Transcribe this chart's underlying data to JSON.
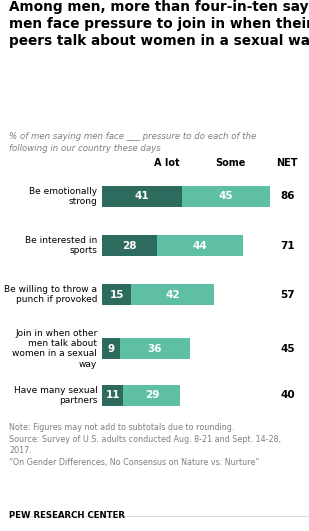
{
  "title": "Among men, more than four-in-ten say\nmen face pressure to join in when their\npeers talk about women in a sexual way",
  "subtitle": "% of men saying men face ___ pressure to do each of the\nfollowing in our country these days",
  "categories": [
    "Be emotionally\nstrong",
    "Be interested in\nsports",
    "Be willing to throw a\npunch if provoked",
    "Join in when other\nmen talk about\nwomen in a sexual\nway",
    "Have many sexual\npartners"
  ],
  "a_lot": [
    41,
    28,
    15,
    9,
    11
  ],
  "some": [
    45,
    44,
    42,
    36,
    29
  ],
  "net": [
    86,
    71,
    57,
    45,
    40
  ],
  "color_alot": "#2d6b5e",
  "color_some": "#5fbfa4",
  "note": "Note: Figures may not add to subtotals due to rounding.\nSource: Survey of U.S. adults conducted Aug. 8-21 and Sept. 14-28,\n2017.\n“On Gender Differences, No Consensus on Nature vs. Nurture”",
  "footer": "PEW RESEARCH CENTER",
  "bg_color": "#ffffff",
  "subtitle_color": "#7f7f7f",
  "note_color": "#7f7f7f",
  "max_val": 90,
  "bar_height": 0.6,
  "figwidth": 3.09,
  "figheight": 5.31
}
